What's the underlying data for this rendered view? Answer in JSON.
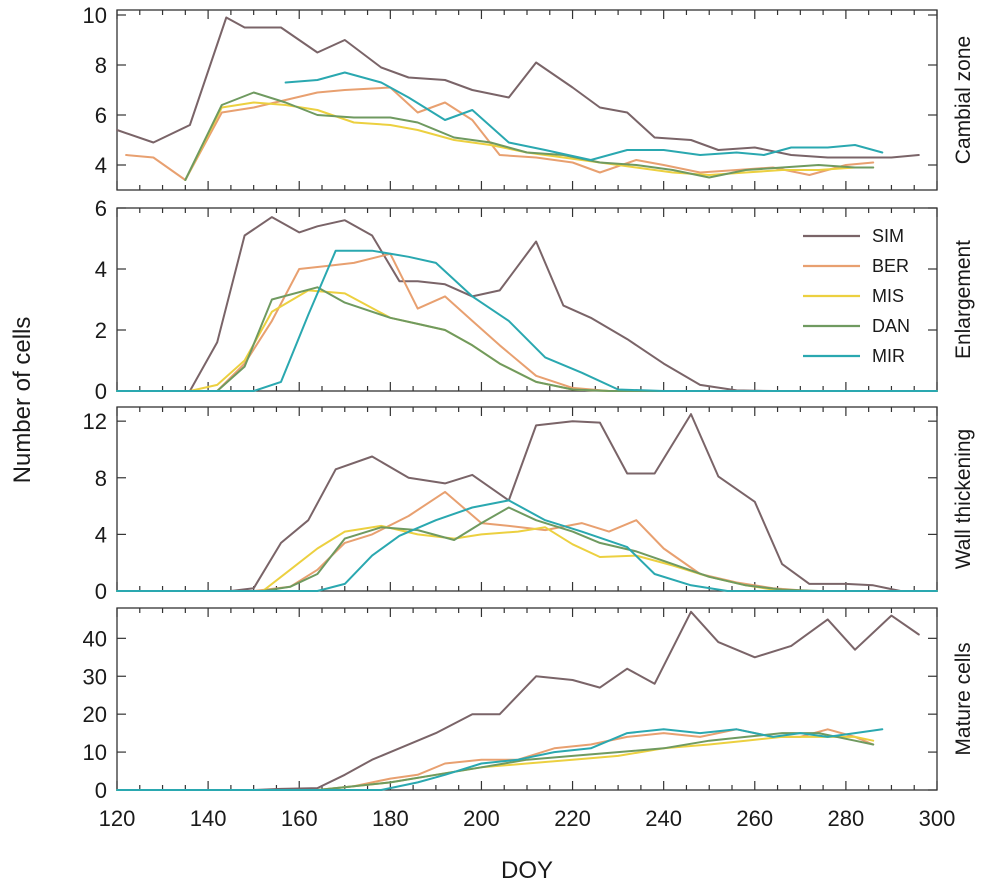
{
  "chart_data": {
    "type": "line",
    "xlabel": "DOY",
    "ylabel": "Number of cells",
    "xlim": [
      120,
      300
    ],
    "xticks": [
      120,
      140,
      160,
      180,
      200,
      220,
      240,
      260,
      280,
      300
    ],
    "legend": {
      "placement": "inside second panel, right",
      "entries": [
        {
          "name": "SIM",
          "color": "#7a6468"
        },
        {
          "name": "BER",
          "color": "#e8a070"
        },
        {
          "name": "MIS",
          "color": "#ecd040"
        },
        {
          "name": "DAN",
          "color": "#6f9a60"
        },
        {
          "name": "MIR",
          "color": "#2aa8b0"
        }
      ]
    },
    "panels": [
      {
        "label": "Cambial zone",
        "ylim": [
          3,
          10.2
        ],
        "yticks": [
          4,
          6,
          8,
          10
        ],
        "series": [
          {
            "name": "SIM",
            "x": [
              120,
              128,
              136,
              144,
              148,
              156,
              164,
              170,
              178,
              184,
              192,
              198,
              206,
              212,
              220,
              226,
              232,
              238,
              246,
              252,
              260,
              268,
              276,
              284,
              290,
              296
            ],
            "y": [
              5.4,
              4.9,
              5.6,
              9.9,
              9.5,
              9.5,
              8.5,
              9.0,
              7.9,
              7.5,
              7.4,
              7.0,
              6.7,
              8.1,
              7.1,
              6.3,
              6.1,
              5.1,
              5.0,
              4.6,
              4.7,
              4.4,
              4.3,
              4.3,
              4.3,
              4.4
            ]
          },
          {
            "name": "BER",
            "x": [
              122,
              128,
              135,
              143,
              150,
              157,
              164,
              170,
              180,
              186,
              192,
              198,
              204,
              212,
              220,
              226,
              234,
              240,
              248,
              256,
              264,
              272,
              280,
              286
            ],
            "y": [
              4.4,
              4.3,
              3.4,
              6.1,
              6.3,
              6.6,
              6.9,
              7.0,
              7.1,
              6.1,
              6.5,
              5.8,
              4.4,
              4.3,
              4.1,
              3.7,
              4.2,
              4.0,
              3.7,
              3.8,
              3.9,
              3.6,
              4.0,
              4.1
            ]
          },
          {
            "name": "MIS",
            "x": [
              135,
              143,
              150,
              157,
              164,
              172,
              180,
              186,
              194,
              202,
              210,
              218,
              226,
              234,
              242,
              250,
              258,
              266,
              274,
              282,
              286
            ],
            "y": [
              3.4,
              6.3,
              6.5,
              6.4,
              6.2,
              5.7,
              5.6,
              5.4,
              5.0,
              4.8,
              4.5,
              4.3,
              4.1,
              3.9,
              3.7,
              3.6,
              3.7,
              3.8,
              3.8,
              3.9,
              3.9
            ]
          },
          {
            "name": "DAN",
            "x": [
              135,
              143,
              150,
              157,
              164,
              172,
              180,
              186,
              194,
              202,
              210,
              218,
              226,
              234,
              242,
              250,
              258,
              266,
              274,
              282,
              286
            ],
            "y": [
              3.4,
              6.4,
              6.9,
              6.5,
              6.0,
              5.9,
              5.9,
              5.7,
              5.1,
              4.9,
              4.5,
              4.4,
              4.1,
              4.0,
              3.8,
              3.5,
              3.8,
              3.9,
              4.0,
              3.9,
              3.9
            ]
          },
          {
            "name": "MIR",
            "x": [
              157,
              164,
              170,
              178,
              184,
              192,
              198,
              206,
              214,
              224,
              232,
              240,
              248,
              256,
              262,
              268,
              276,
              282,
              288
            ],
            "y": [
              7.3,
              7.4,
              7.7,
              7.3,
              6.7,
              5.8,
              6.2,
              4.9,
              4.6,
              4.2,
              4.6,
              4.6,
              4.4,
              4.5,
              4.4,
              4.7,
              4.7,
              4.8,
              4.5
            ]
          }
        ]
      },
      {
        "label": "Enlargement",
        "ylim": [
          0,
          6
        ],
        "yticks": [
          0,
          2,
          4,
          6
        ],
        "series": [
          {
            "name": "SIM",
            "x": [
              120,
              130,
              136,
              142,
              148,
              154,
              160,
              164,
              170,
              176,
              182,
              186,
              192,
              198,
              204,
              212,
              218,
              224,
              232,
              240,
              248,
              256,
              264,
              300
            ],
            "y": [
              0,
              0,
              0,
              1.6,
              5.1,
              5.7,
              5.2,
              5.4,
              5.6,
              5.1,
              3.6,
              3.6,
              3.5,
              3.1,
              3.3,
              4.9,
              2.8,
              2.4,
              1.7,
              0.9,
              0.2,
              0.02,
              0,
              0
            ]
          },
          {
            "name": "BER",
            "x": [
              120,
              142,
              148,
              154,
              160,
              166,
              172,
              180,
              186,
              192,
              198,
              204,
              212,
              220,
              228,
              240,
              300
            ],
            "y": [
              0,
              0,
              0.9,
              2.3,
              4.0,
              4.1,
              4.2,
              4.5,
              2.7,
              3.1,
              2.3,
              1.5,
              0.5,
              0.1,
              0,
              0,
              0
            ]
          },
          {
            "name": "MIS",
            "x": [
              120,
              136,
              142,
              148,
              154,
              162,
              170,
              180,
              186,
              192,
              198,
              204,
              212,
              220,
              228,
              300
            ],
            "y": [
              0,
              0,
              0.2,
              1.0,
              2.6,
              3.3,
              3.2,
              2.4,
              2.2,
              2.0,
              1.5,
              0.9,
              0.3,
              0.05,
              0,
              0
            ]
          },
          {
            "name": "DAN",
            "x": [
              120,
              142,
              148,
              154,
              164,
              170,
              180,
              186,
              192,
              198,
              204,
              212,
              220,
              228,
              300
            ],
            "y": [
              0,
              0,
              0.8,
              3.0,
              3.4,
              2.9,
              2.4,
              2.2,
              2.0,
              1.5,
              0.9,
              0.3,
              0.05,
              0,
              0
            ]
          },
          {
            "name": "MIR",
            "x": [
              120,
              150,
              156,
              162,
              168,
              176,
              184,
              190,
              198,
              206,
              214,
              222,
              230,
              240,
              300
            ],
            "y": [
              0,
              0,
              0.3,
              2.5,
              4.6,
              4.6,
              4.4,
              4.2,
              3.1,
              2.3,
              1.1,
              0.6,
              0.05,
              0,
              0
            ]
          }
        ]
      },
      {
        "label": "Wall thickening",
        "ylim": [
          0,
          13
        ],
        "yticks": [
          0,
          4,
          8,
          12
        ],
        "series": [
          {
            "name": "SIM",
            "x": [
              120,
              145,
              150,
              156,
              162,
              168,
              176,
              184,
              192,
              198,
              206,
              212,
              220,
              226,
              232,
              238,
              246,
              252,
              260,
              266,
              272,
              280,
              286,
              292,
              300
            ],
            "y": [
              0,
              0,
              0.2,
              3.4,
              5.0,
              8.6,
              9.5,
              8.0,
              7.6,
              8.2,
              6.4,
              11.7,
              12.0,
              11.9,
              8.3,
              8.3,
              12.5,
              8.1,
              6.3,
              1.9,
              0.5,
              0.5,
              0.4,
              0,
              0
            ]
          },
          {
            "name": "BER",
            "x": [
              120,
              150,
              158,
              164,
              170,
              176,
              184,
              192,
              200,
              206,
              214,
              222,
              228,
              234,
              240,
              248,
              256,
              264,
              272,
              300
            ],
            "y": [
              0,
              0,
              0.3,
              1.5,
              3.4,
              4.0,
              5.3,
              7.0,
              4.8,
              4.6,
              4.3,
              4.8,
              4.2,
              5.0,
              3.0,
              1.2,
              0.6,
              0.2,
              0,
              0
            ]
          },
          {
            "name": "MIS",
            "x": [
              120,
              152,
              158,
              164,
              170,
              178,
              186,
              194,
              200,
              208,
              214,
              220,
              226,
              234,
              242,
              250,
              258,
              266,
              300
            ],
            "y": [
              0,
              0,
              1.5,
              3.0,
              4.2,
              4.6,
              4.0,
              3.7,
              4.0,
              4.2,
              4.5,
              3.3,
              2.4,
              2.5,
              1.8,
              1.0,
              0.4,
              0,
              0
            ]
          },
          {
            "name": "DAN",
            "x": [
              120,
              152,
              158,
              164,
              170,
              178,
              186,
              194,
              200,
              206,
              212,
              220,
              226,
              234,
              242,
              250,
              258,
              266,
              274,
              300
            ],
            "y": [
              0,
              0,
              0.3,
              1.2,
              3.7,
              4.5,
              4.3,
              3.6,
              4.8,
              5.9,
              5.0,
              4.2,
              3.4,
              2.8,
              1.9,
              1.0,
              0.4,
              0.1,
              0,
              0
            ]
          },
          {
            "name": "MIR",
            "x": [
              120,
              164,
              170,
              176,
              182,
              190,
              198,
              206,
              214,
              222,
              232,
              238,
              246,
              254,
              300
            ],
            "y": [
              0,
              0,
              0.5,
              2.5,
              3.9,
              5.0,
              5.9,
              6.4,
              5.0,
              4.2,
              3.1,
              1.2,
              0.4,
              0,
              0
            ]
          }
        ]
      },
      {
        "label": "Mature cells",
        "ylim": [
          0,
          48
        ],
        "yticks": [
          0,
          10,
          20,
          30,
          40
        ],
        "series": [
          {
            "name": "SIM",
            "x": [
              120,
              150,
              156,
              164,
              170,
              176,
              182,
              190,
              198,
              204,
              212,
              220,
              226,
              232,
              238,
              246,
              252,
              260,
              268,
              276,
              282,
              290,
              296
            ],
            "y": [
              0,
              0,
              0.3,
              0.5,
              4.0,
              8.0,
              11.0,
              15.0,
              20.0,
              20.0,
              30.0,
              29.0,
              27.0,
              32.0,
              28.0,
              47.0,
              39.0,
              35.0,
              38.0,
              45.0,
              37.0,
              46.0,
              41.0
            ]
          },
          {
            "name": "BER",
            "x": [
              120,
              164,
              172,
              180,
              186,
              192,
              200,
              208,
              216,
              224,
              232,
              240,
              248,
              256,
              264,
              270,
              276,
              282,
              286
            ],
            "y": [
              0,
              0,
              1.0,
              3.0,
              4.0,
              7.0,
              8.0,
              8.0,
              11.0,
              12.0,
              14.0,
              15.0,
              14.0,
              16.0,
              14.0,
              14.0,
              16.0,
              14.0,
              12.0
            ]
          },
          {
            "name": "MIS",
            "x": [
              120,
              164,
              172,
              180,
              190,
              200,
              210,
              220,
              230,
              240,
              250,
              258,
              266,
              274,
              282,
              286
            ],
            "y": [
              0,
              0,
              1.0,
              2.0,
              4.0,
              6.0,
              7.0,
              8.0,
              9.0,
              11.0,
              12.0,
              13.0,
              14.0,
              14.0,
              14.0,
              13.0
            ]
          },
          {
            "name": "DAN",
            "x": [
              120,
              164,
              172,
              180,
              190,
              200,
              210,
              220,
              230,
              240,
              250,
              258,
              266,
              274,
              282,
              286
            ],
            "y": [
              0,
              0,
              1.0,
              2.0,
              4.0,
              6.0,
              8.0,
              9.0,
              10.0,
              11.0,
              13.0,
              14.0,
              15.0,
              15.0,
              13.0,
              12.0
            ]
          },
          {
            "name": "MIR",
            "x": [
              120,
              178,
              186,
              192,
              200,
              208,
              216,
              224,
              232,
              240,
              248,
              256,
              264,
              270,
              276,
              282,
              288
            ],
            "y": [
              0,
              0,
              2.0,
              4.0,
              7.0,
              8.0,
              10.0,
              11.0,
              15.0,
              16.0,
              15.0,
              16.0,
              14.0,
              15.0,
              14.0,
              15.0,
              16.0
            ]
          }
        ]
      }
    ]
  }
}
